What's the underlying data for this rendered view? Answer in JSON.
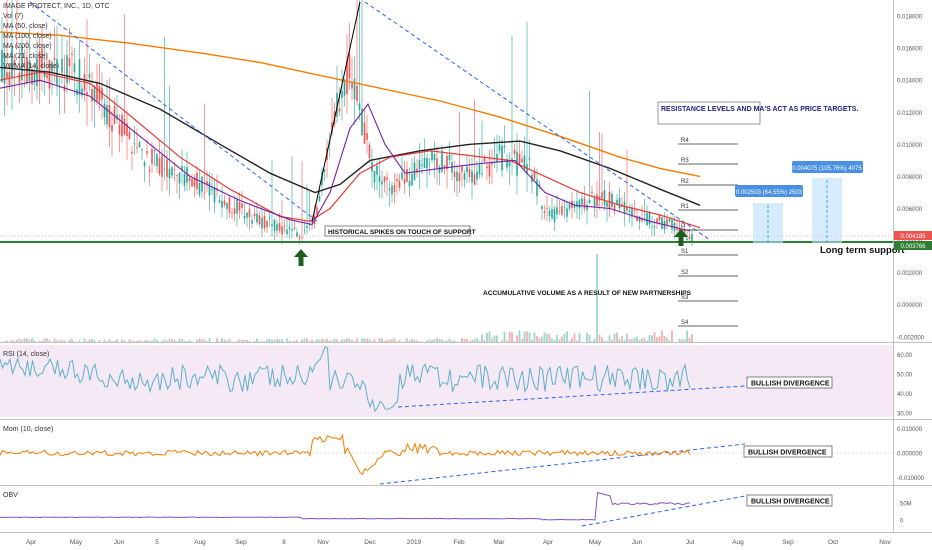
{
  "legend": {
    "symbol": "IMAGE PROTECT, INC., 1D, OTC",
    "indicators": [
      "Vol (7)",
      "MA (50, close)",
      "MA (100, close)",
      "MA (200, close)",
      "MA (21, close)",
      "VWMA (14, close)"
    ]
  },
  "price_axis": {
    "ticks": [
      "0.018000",
      "0.016000",
      "0.014000",
      "0.012000",
      "0.010000",
      "0.008000",
      "0.006000",
      "0.004000",
      "0.002000",
      "0.000000",
      "-0.002000"
    ],
    "last_price": "0.004185",
    "support_price": "0.003766"
  },
  "pivots": [
    "R4",
    "R3",
    "R2",
    "R1",
    "P",
    "S1",
    "S2",
    "S3",
    "S4"
  ],
  "annotations": {
    "resistance": "RESISTANCE LEVELS AND MA'S ACT AS PRICE TARGETS.",
    "spikes": "HISTORICAL SPIKES ON TOUCH OF SUPPORT",
    "volume": "ACCUMULATIVE VOLUME AS A RESULT OF NEW PARTNERSHIPS",
    "support": "Long term support",
    "measure1": "0.002503 (64.55%) 2503",
    "measure2": "0.004075 (105.76%) 4075",
    "divergence": "BULLISH DIVERGENCE"
  },
  "rsi": {
    "label": "RSI (14, close)",
    "ticks": [
      "60.00",
      "50.00",
      "40.00",
      "30.00"
    ]
  },
  "mom": {
    "label": "Mom (10, close)",
    "ticks": [
      "0.010000",
      "0.000000",
      "-0.010000"
    ]
  },
  "obv": {
    "label": "OBV",
    "ticks": [
      "50M",
      "0"
    ]
  },
  "time_axis": [
    "Apr",
    "May",
    "Jun",
    "5",
    "Aug",
    "Sep",
    "8",
    "Nov",
    "Dec",
    "2019",
    "Feb",
    "Mar",
    "Apr",
    "May",
    "Jun",
    "Jul",
    "Aug",
    "Sep",
    "Oct",
    "Nov"
  ],
  "colors": {
    "candle_up": "#26a69a",
    "candle_down": "#ef5350",
    "ma50": "#e53935",
    "ma100": "#222222",
    "ma200": "#f57c00",
    "ma21": "#7b1fa2",
    "rsi": "#5fb0c6",
    "mom": "#f57c00",
    "obv": "#7e57c2",
    "support": "#2e7d32"
  },
  "chart_data": {
    "type": "line",
    "title": "IMAGE PROTECT, INC., 1D, OTC",
    "x": [
      "Apr",
      "May",
      "Jun",
      "5",
      "Aug",
      "Sep",
      "8",
      "Nov",
      "Dec",
      "2019",
      "Feb",
      "Mar",
      "Apr",
      "May",
      "Jun",
      "Jul"
    ],
    "series": [
      {
        "name": "MA (200, close)",
        "values": [
          0.017,
          0.0168,
          0.0164,
          0.0158,
          0.015,
          0.0144,
          0.0138,
          0.0133,
          0.0128,
          0.0122,
          0.0115,
          0.0106,
          0.0098,
          0.009,
          0.0083,
          0.008
        ]
      },
      {
        "name": "MA (100, close)",
        "values": [
          0.015,
          0.0138,
          0.0124,
          0.0112,
          0.0098,
          0.0083,
          0.0068,
          0.0076,
          0.0095,
          0.0101,
          0.0104,
          0.01,
          0.0093,
          0.0082,
          0.0073,
          0.0063
        ]
      }
    ],
    "ylim": [
      -0.0022,
      0.019
    ],
    "last_price": 0.004185,
    "support_level": 0.003766,
    "measurements": [
      {
        "change": 0.002503,
        "percent": 64.55,
        "ticks": 2503
      },
      {
        "change": 0.004075,
        "percent": 105.76,
        "ticks": 4075
      }
    ],
    "rsi_range": [
      30,
      60
    ],
    "momentum_range": [
      -0.01,
      0.01
    ]
  }
}
